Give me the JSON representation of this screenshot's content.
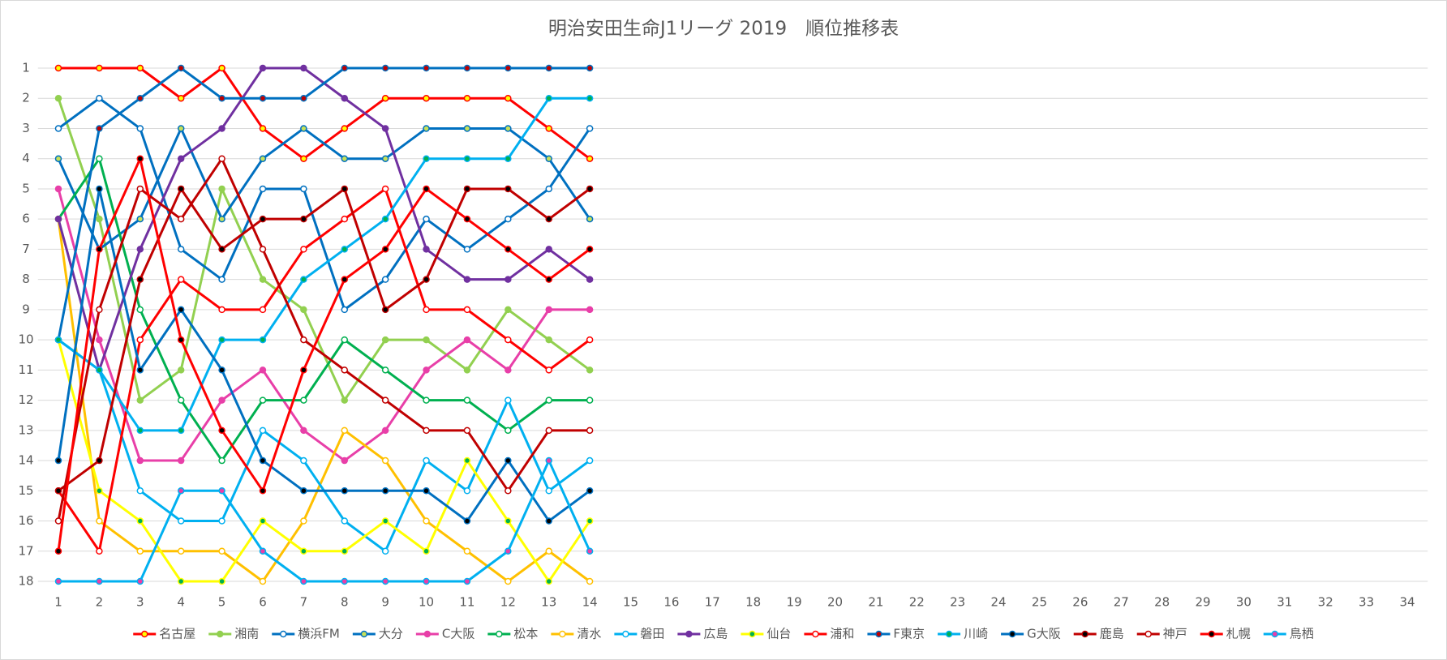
{
  "chart_data": {
    "type": "line",
    "title": "明治安田生命J1リーグ 2019　順位推移表",
    "x": [
      1,
      2,
      3,
      4,
      5,
      6,
      7,
      8,
      9,
      10,
      11,
      12,
      13,
      14
    ],
    "xlim": [
      1,
      34
    ],
    "xticks": [
      1,
      2,
      3,
      4,
      5,
      6,
      7,
      8,
      9,
      10,
      11,
      12,
      13,
      14,
      15,
      16,
      17,
      18,
      19,
      20,
      21,
      22,
      23,
      24,
      25,
      26,
      27,
      28,
      29,
      30,
      31,
      32,
      33,
      34
    ],
    "ylim": [
      1,
      18
    ],
    "yticks": [
      1,
      2,
      3,
      4,
      5,
      6,
      7,
      8,
      9,
      10,
      11,
      12,
      13,
      14,
      15,
      16,
      17,
      18
    ],
    "y_inverted": true,
    "grid": true,
    "legend": "bottom",
    "series": [
      {
        "name": "名古屋",
        "color": "#ff0000",
        "marker_color": "#ffff00",
        "values": [
          1,
          1,
          1,
          2,
          1,
          3,
          4,
          3,
          2,
          2,
          2,
          2,
          3,
          4
        ]
      },
      {
        "name": "湘南",
        "color": "#92d050",
        "marker_color": "#92d050",
        "values": [
          2,
          6,
          12,
          11,
          5,
          8,
          9,
          12,
          10,
          10,
          11,
          9,
          10,
          11
        ]
      },
      {
        "name": "横浜FM",
        "color": "#0070c0",
        "marker_color": "#ffffff",
        "values": [
          3,
          2,
          3,
          7,
          8,
          5,
          5,
          9,
          8,
          6,
          7,
          6,
          5,
          3
        ]
      },
      {
        "name": "大分",
        "color": "#0070c0",
        "marker_color": "#c6e05a",
        "values": [
          4,
          7,
          6,
          3,
          6,
          4,
          3,
          4,
          4,
          3,
          3,
          3,
          4,
          6
        ]
      },
      {
        "name": "C大阪",
        "color": "#e83fa8",
        "marker_color": "#e83fa8",
        "values": [
          5,
          10,
          14,
          14,
          12,
          11,
          13,
          14,
          13,
          11,
          10,
          11,
          9,
          9
        ]
      },
      {
        "name": "松本",
        "color": "#00b050",
        "marker_color": "#ffffff",
        "values": [
          6,
          4,
          9,
          12,
          14,
          12,
          12,
          10,
          11,
          12,
          12,
          13,
          12,
          12
        ]
      },
      {
        "name": "清水",
        "color": "#ffc000",
        "marker_color": "#ffffff",
        "values": [
          6,
          16,
          17,
          17,
          17,
          18,
          16,
          13,
          14,
          16,
          17,
          18,
          17,
          18
        ]
      },
      {
        "name": "磐田",
        "color": "#00b0f0",
        "marker_color": "#ffffff",
        "values": [
          10,
          11,
          15,
          16,
          16,
          13,
          14,
          16,
          17,
          14,
          15,
          12,
          15,
          14
        ]
      },
      {
        "name": "広島",
        "color": "#7030a0",
        "marker_color": "#7030a0",
        "values": [
          6,
          11,
          7,
          4,
          3,
          1,
          1,
          2,
          3,
          7,
          8,
          8,
          7,
          8
        ]
      },
      {
        "name": "仙台",
        "color": "#ffff00",
        "marker_color": "#00b050",
        "values": [
          10,
          15,
          16,
          18,
          18,
          16,
          17,
          17,
          16,
          17,
          14,
          16,
          18,
          16
        ]
      },
      {
        "name": "浦和",
        "color": "#ff0000",
        "marker_color": "#ffffff",
        "values": [
          15,
          17,
          10,
          8,
          9,
          9,
          7,
          6,
          5,
          9,
          9,
          10,
          11,
          10
        ]
      },
      {
        "name": "F東京",
        "color": "#0070c0",
        "marker_color": "#c00000",
        "values": [
          10,
          3,
          2,
          1,
          2,
          2,
          2,
          1,
          1,
          1,
          1,
          1,
          1,
          1
        ]
      },
      {
        "name": "川崎",
        "color": "#00b0f0",
        "marker_color": "#00b050",
        "values": [
          10,
          11,
          13,
          13,
          10,
          10,
          8,
          7,
          6,
          4,
          4,
          4,
          2,
          2
        ]
      },
      {
        "name": "G大阪",
        "color": "#0070c0",
        "marker_color": "#000000",
        "values": [
          14,
          5,
          11,
          9,
          11,
          14,
          15,
          15,
          15,
          15,
          16,
          14,
          16,
          15
        ]
      },
      {
        "name": "鹿島",
        "color": "#c00000",
        "marker_color": "#000000",
        "values": [
          15,
          14,
          8,
          5,
          7,
          6,
          6,
          5,
          9,
          8,
          5,
          5,
          6,
          5
        ]
      },
      {
        "name": "神戸",
        "color": "#c00000",
        "marker_color": "#ffffff",
        "values": [
          16,
          9,
          5,
          6,
          4,
          7,
          10,
          11,
          12,
          13,
          13,
          15,
          13,
          13
        ]
      },
      {
        "name": "札幌",
        "color": "#ff0000",
        "marker_color": "#000000",
        "values": [
          17,
          7,
          4,
          10,
          13,
          15,
          11,
          8,
          7,
          5,
          6,
          7,
          8,
          7
        ]
      },
      {
        "name": "鳥栖",
        "color": "#00b0f0",
        "marker_color": "#e83fa8",
        "values": [
          18,
          18,
          18,
          15,
          15,
          17,
          18,
          18,
          18,
          18,
          18,
          17,
          14,
          17
        ]
      }
    ]
  }
}
